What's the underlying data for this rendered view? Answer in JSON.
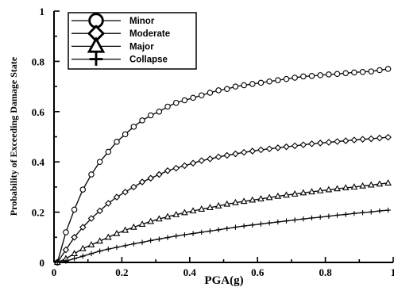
{
  "chart_data": {
    "type": "line",
    "xlabel": "PGA(g)",
    "ylabel": "Probability of Exceeding Damage State",
    "xlim": [
      0,
      1
    ],
    "ylim": [
      0,
      1
    ],
    "xticks": [
      "0",
      "0.2",
      "0.4",
      "0.6",
      "0.8",
      "1"
    ],
    "yticks": [
      "0",
      "0.2",
      "0.4",
      "0.6",
      "0.8",
      "1"
    ],
    "grid": false,
    "legend_position": "top-left",
    "x": [
      0.01,
      0.035,
      0.06,
      0.085,
      0.11,
      0.135,
      0.16,
      0.185,
      0.21,
      0.235,
      0.26,
      0.285,
      0.31,
      0.335,
      0.36,
      0.385,
      0.41,
      0.435,
      0.46,
      0.485,
      0.51,
      0.535,
      0.56,
      0.585,
      0.61,
      0.635,
      0.66,
      0.685,
      0.71,
      0.735,
      0.76,
      0.785,
      0.81,
      0.835,
      0.86,
      0.885,
      0.91,
      0.935,
      0.96,
      0.985
    ],
    "series": [
      {
        "name": "Minor",
        "marker": "circle",
        "values": [
          0.0,
          0.12,
          0.21,
          0.29,
          0.35,
          0.4,
          0.44,
          0.48,
          0.51,
          0.54,
          0.565,
          0.585,
          0.6,
          0.62,
          0.635,
          0.645,
          0.655,
          0.665,
          0.675,
          0.685,
          0.69,
          0.7,
          0.705,
          0.71,
          0.715,
          0.72,
          0.725,
          0.73,
          0.735,
          0.74,
          0.742,
          0.745,
          0.748,
          0.75,
          0.753,
          0.756,
          0.758,
          0.76,
          0.765,
          0.77
        ]
      },
      {
        "name": "Moderate",
        "marker": "diamond",
        "values": [
          0.0,
          0.05,
          0.1,
          0.14,
          0.175,
          0.205,
          0.235,
          0.26,
          0.28,
          0.3,
          0.32,
          0.335,
          0.35,
          0.365,
          0.375,
          0.385,
          0.395,
          0.405,
          0.412,
          0.42,
          0.426,
          0.432,
          0.438,
          0.443,
          0.448,
          0.452,
          0.456,
          0.46,
          0.464,
          0.468,
          0.472,
          0.475,
          0.478,
          0.481,
          0.484,
          0.487,
          0.49,
          0.492,
          0.495,
          0.498
        ]
      },
      {
        "name": "Major",
        "marker": "triangle",
        "values": [
          0.0,
          0.015,
          0.035,
          0.055,
          0.07,
          0.085,
          0.1,
          0.115,
          0.128,
          0.14,
          0.152,
          0.163,
          0.173,
          0.182,
          0.19,
          0.198,
          0.205,
          0.212,
          0.218,
          0.225,
          0.232,
          0.238,
          0.243,
          0.248,
          0.253,
          0.258,
          0.263,
          0.268,
          0.272,
          0.277,
          0.281,
          0.285,
          0.289,
          0.293,
          0.297,
          0.3,
          0.304,
          0.308,
          0.312,
          0.316
        ]
      },
      {
        "name": "Collapse",
        "marker": "plus",
        "values": [
          0.0,
          0.005,
          0.015,
          0.025,
          0.035,
          0.045,
          0.053,
          0.06,
          0.067,
          0.074,
          0.08,
          0.087,
          0.093,
          0.099,
          0.105,
          0.11,
          0.115,
          0.12,
          0.125,
          0.13,
          0.135,
          0.14,
          0.145,
          0.149,
          0.153,
          0.157,
          0.161,
          0.165,
          0.169,
          0.173,
          0.177,
          0.18,
          0.184,
          0.188,
          0.191,
          0.195,
          0.198,
          0.201,
          0.205,
          0.208
        ]
      }
    ]
  }
}
